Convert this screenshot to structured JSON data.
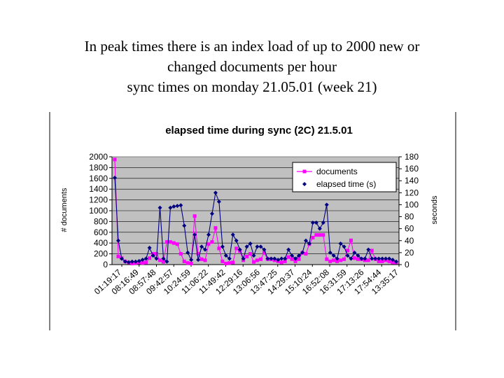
{
  "slide": {
    "title_lines": [
      "In peak times there is an index load of up to 2000 new or",
      "changed documents per hour",
      "sync times on monday 21.05.01 (week 21)"
    ]
  },
  "chart_data": {
    "type": "line",
    "title": "elapsed time during sync (2C) 21.5.01",
    "ylabel": "# documents",
    "y2label": "seconds",
    "ylim": [
      0,
      2000
    ],
    "y2lim": [
      0,
      180
    ],
    "yticks": [
      "0",
      "200",
      "400",
      "600",
      "800",
      "1000",
      "1200",
      "1400",
      "1600",
      "1800",
      "2000"
    ],
    "y2ticks": [
      "0",
      "20",
      "40",
      "60",
      "80",
      "100",
      "120",
      "140",
      "160",
      "180"
    ],
    "xticks": [
      "01:19:17",
      "08:16:49",
      "08:57:48",
      "09:42:57",
      "10:24:59",
      "11:06:22",
      "11:49:42",
      "12:29:16",
      "13:06:56",
      "13:47:25",
      "14:29:37",
      "15:10:24",
      "16:52:08",
      "16:31:59",
      "17:13:26",
      "17:54:44",
      "13:35:17"
    ],
    "legend_position": "top-right",
    "grid": true,
    "colors": {
      "plot_bg": "#c0c0c0",
      "documents": "#ff00ff",
      "elapsed": "#000080"
    },
    "series": [
      {
        "name": "documents",
        "axis": "left",
        "values": [
          1950,
          150,
          120,
          60,
          40,
          20,
          30,
          40,
          30,
          40,
          120,
          200,
          200,
          80,
          50,
          420,
          420,
          400,
          380,
          200,
          60,
          30,
          20,
          900,
          200,
          100,
          80,
          380,
          420,
          680,
          300,
          60,
          20,
          30,
          40,
          300,
          250,
          80,
          150,
          200,
          50,
          80,
          100,
          220,
          100,
          100,
          80,
          60,
          40,
          60,
          140,
          100,
          60,
          100,
          220,
          200,
          380,
          500,
          550,
          550,
          550,
          100,
          60,
          80,
          60,
          80,
          100,
          260,
          450,
          120,
          100,
          100,
          80,
          80,
          260,
          100,
          60,
          60,
          80,
          60,
          40,
          40
        ]
      },
      {
        "name": "elapsed time (s)",
        "axis": "right",
        "values": [
          145,
          40,
          10,
          5,
          4,
          5,
          5,
          6,
          8,
          10,
          28,
          15,
          10,
          95,
          10,
          5,
          95,
          97,
          98,
          99,
          65,
          20,
          8,
          50,
          8,
          30,
          25,
          50,
          85,
          120,
          105,
          30,
          15,
          10,
          50,
          40,
          25,
          10,
          30,
          35,
          15,
          30,
          30,
          25,
          10,
          10,
          10,
          8,
          10,
          10,
          25,
          15,
          10,
          15,
          20,
          40,
          35,
          70,
          70,
          60,
          70,
          100,
          20,
          15,
          10,
          35,
          30,
          15,
          10,
          20,
          15,
          10,
          10,
          25,
          10,
          10,
          10,
          10,
          10,
          10,
          8,
          5
        ]
      }
    ]
  }
}
